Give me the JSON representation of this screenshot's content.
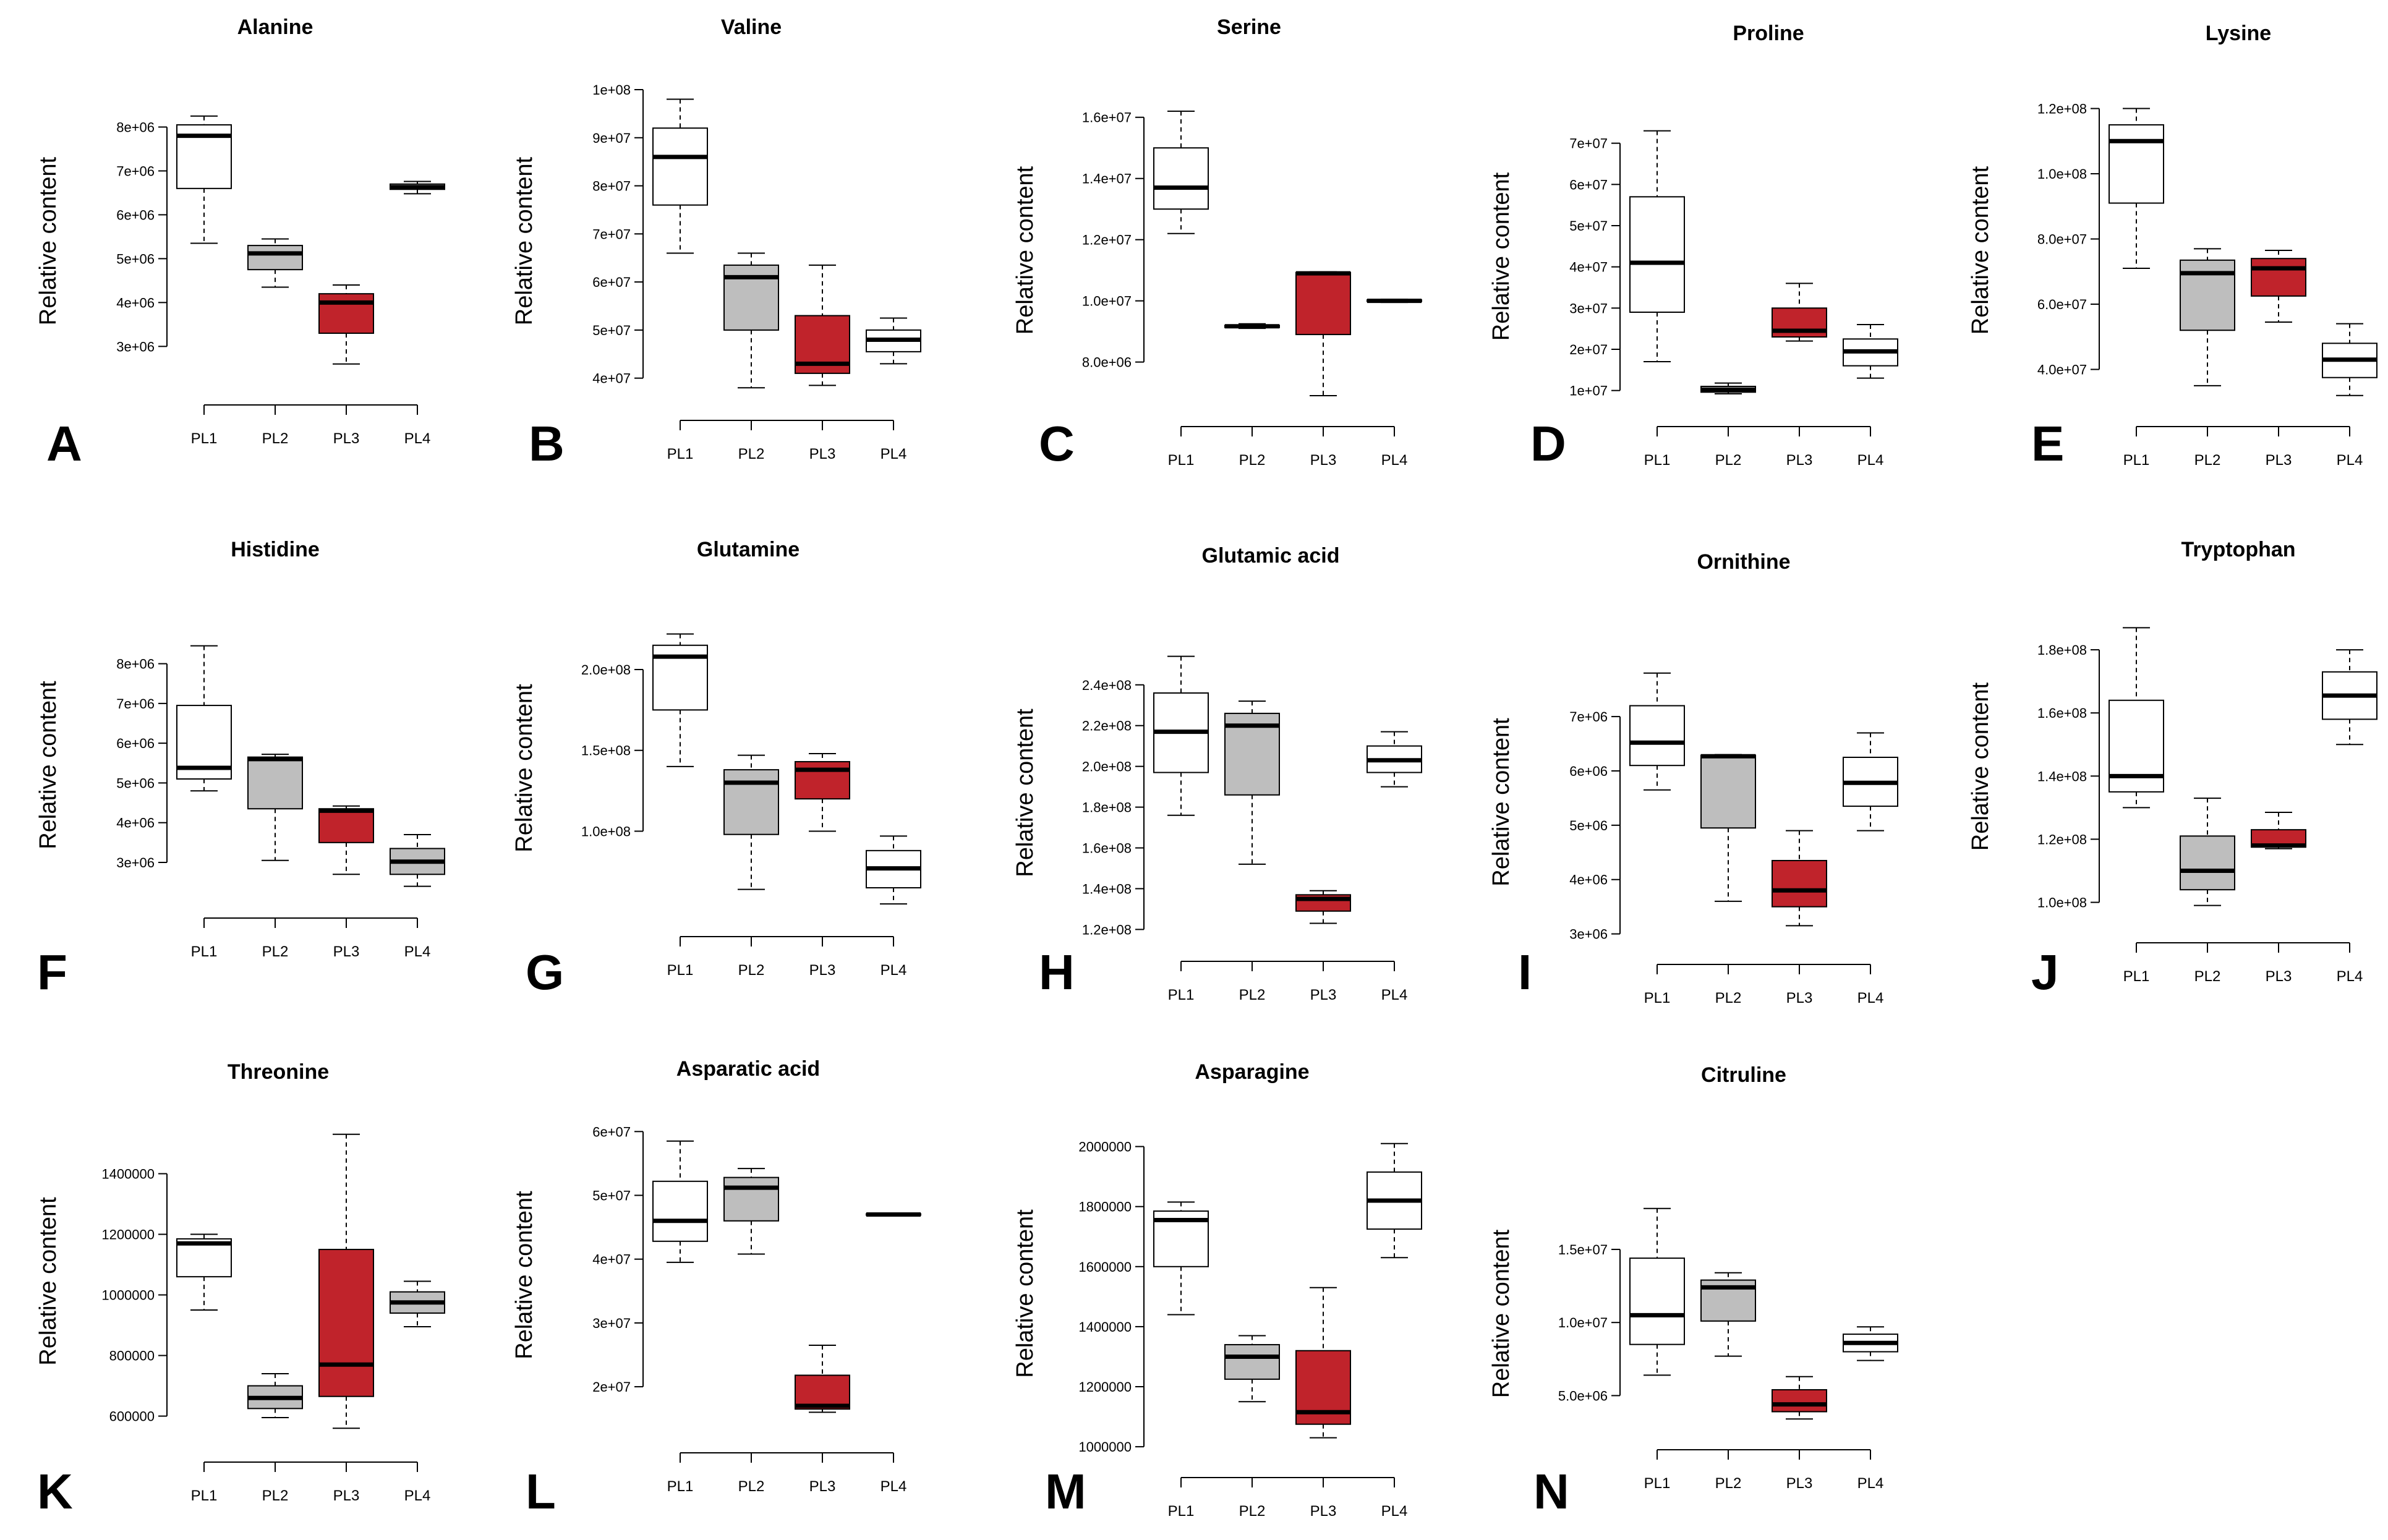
{
  "figure": {
    "ylabel": "Relative content",
    "colors": {
      "white": "#ffffff",
      "gray": "#bebebe",
      "red": "#c0232b",
      "line": "#000000"
    }
  },
  "chart_data": [
    {
      "panel": "A",
      "title": "Alanine",
      "type": "boxplot",
      "ylabel": "Relative content",
      "ylim": [
        2300000.0,
        8500000.0
      ],
      "ticks": [
        3000000.0,
        4000000.0,
        5000000.0,
        6000000.0,
        7000000.0,
        8000000.0
      ],
      "tick_labels": [
        "3e+06",
        "4e+06",
        "5e+06",
        "6e+06",
        "7e+06",
        "8e+06"
      ],
      "categories": [
        "PL1",
        "PL2",
        "PL3",
        "PL4"
      ],
      "fills": [
        "white",
        "gray",
        "red",
        "gray"
      ],
      "boxes": [
        {
          "min": 5350000.0,
          "q1": 6600000.0,
          "median": 7800000.0,
          "q3": 8050000.0,
          "max": 8250000.0
        },
        {
          "min": 4350000.0,
          "q1": 4750000.0,
          "median": 5120000.0,
          "q3": 5300000.0,
          "max": 5450000.0
        },
        {
          "min": 2600000.0,
          "q1": 3300000.0,
          "median": 4000000.0,
          "q3": 4200000.0,
          "max": 4400000.0
        },
        {
          "min": 6480000.0,
          "q1": 6580000.0,
          "median": 6630000.0,
          "q3": 6700000.0,
          "max": 6760000.0
        }
      ]
    },
    {
      "panel": "B",
      "title": "Valine",
      "type": "boxplot",
      "ylabel": "Relative content",
      "ylim": [
        37000000.0,
        100000000.0
      ],
      "ticks": [
        40000000.0,
        50000000.0,
        60000000.0,
        70000000.0,
        80000000.0,
        90000000.0,
        100000000.0
      ],
      "tick_labels": [
        "4e+07",
        "5e+07",
        "6e+07",
        "7e+07",
        "8e+07",
        "9e+07",
        "1e+08"
      ],
      "categories": [
        "PL1",
        "PL2",
        "PL3",
        "PL4"
      ],
      "fills": [
        "white",
        "gray",
        "red",
        "white"
      ],
      "boxes": [
        {
          "min": 66000000.0,
          "q1": 76000000.0,
          "median": 86000000.0,
          "q3": 92000000.0,
          "max": 98000000.0
        },
        {
          "min": 38000000.0,
          "q1": 50000000.0,
          "median": 61000000.0,
          "q3": 63500000.0,
          "max": 66000000.0
        },
        {
          "min": 38500000.0,
          "q1": 41000000.0,
          "median": 43000000.0,
          "q3": 53000000.0,
          "max": 63500000.0
        },
        {
          "min": 43000000.0,
          "q1": 45500000.0,
          "median": 48000000.0,
          "q3": 50000000.0,
          "max": 52500000.0
        }
      ]
    },
    {
      "panel": "C",
      "title": "Serine",
      "type": "boxplot",
      "ylabel": "Relative content",
      "ylim": [
        6800000.0,
        16500000.0
      ],
      "ticks": [
        8000000.0,
        10000000.0,
        12000000.0,
        14000000.0,
        16000000.0
      ],
      "tick_labels": [
        "8.0e+06",
        "1.0e+07",
        "1.2e+07",
        "1.4e+07",
        "1.6e+07"
      ],
      "categories": [
        "PL1",
        "PL2",
        "PL3",
        "PL4"
      ],
      "fills": [
        "white",
        "gray",
        "red",
        "gray"
      ],
      "boxes": [
        {
          "min": 12200000.0,
          "q1": 13000000.0,
          "median": 13700000.0,
          "q3": 15000000.0,
          "max": 16200000.0
        },
        {
          "min": 9100000.0,
          "q1": 9130000.0,
          "median": 9170000.0,
          "q3": 9200000.0,
          "max": 9250000.0
        },
        {
          "min": 6900000.0,
          "q1": 8900000.0,
          "median": 10900000.0,
          "q3": 10930000.0,
          "max": 10950000.0
        },
        {
          "min": 9950000.0,
          "q1": 9980000.0,
          "median": 10000000.0,
          "q3": 10030000.0,
          "max": 10050000.0
        }
      ]
    },
    {
      "panel": "D",
      "title": "Proline",
      "type": "boxplot",
      "ylabel": "Relative content",
      "ylim": [
        8000000.0,
        77000000.0
      ],
      "ticks": [
        10000000.0,
        20000000.0,
        30000000.0,
        40000000.0,
        50000000.0,
        60000000.0,
        70000000.0
      ],
      "tick_labels": [
        "1e+07",
        "2e+07",
        "3e+07",
        "4e+07",
        "5e+07",
        "6e+07",
        "7e+07"
      ],
      "categories": [
        "PL1",
        "PL2",
        "PL3",
        "PL4"
      ],
      "fills": [
        "white",
        "gray",
        "red",
        "white"
      ],
      "boxes": [
        {
          "min": 17000000.0,
          "q1": 29000000.0,
          "median": 41000000.0,
          "q3": 57000000.0,
          "max": 73000000.0
        },
        {
          "min": 9200000.0,
          "q1": 9600000.0,
          "median": 10200000.0,
          "q3": 11000000.0,
          "max": 11800000.0
        },
        {
          "min": 22000000.0,
          "q1": 23000000.0,
          "median": 24500000.0,
          "q3": 30000000.0,
          "max": 36000000.0
        },
        {
          "min": 13000000.0,
          "q1": 16000000.0,
          "median": 19500000.0,
          "q3": 22500000.0,
          "max": 26000000.0
        }
      ]
    },
    {
      "panel": "E",
      "title": "Lysine",
      "type": "boxplot",
      "ylabel": "Relative content",
      "ylim": [
        31000000.0,
        122000000.0
      ],
      "ticks": [
        40000000.0,
        60000000.0,
        80000000.0,
        100000000.0,
        120000000.0
      ],
      "tick_labels": [
        "4.0e+07",
        "6.0e+07",
        "8.0e+07",
        "1.0e+08",
        "1.2e+08"
      ],
      "categories": [
        "PL1",
        "PL2",
        "PL3",
        "PL4"
      ],
      "fills": [
        "white",
        "gray",
        "red",
        "white"
      ],
      "boxes": [
        {
          "min": 71000000.0,
          "q1": 91000000.0,
          "median": 110000000.0,
          "q3": 115000000.0,
          "max": 120000000.0
        },
        {
          "min": 35000000.0,
          "q1": 52000000.0,
          "median": 69500000.0,
          "q3": 73500000.0,
          "max": 77000000.0
        },
        {
          "min": 54500000.0,
          "q1": 62500000.0,
          "median": 71000000.0,
          "q3": 74000000.0,
          "max": 76500000.0
        },
        {
          "min": 32000000.0,
          "q1": 37500000.0,
          "median": 43000000.0,
          "q3": 48000000.0,
          "max": 54000000.0
        }
      ]
    },
    {
      "panel": "F",
      "title": "Histidine",
      "type": "boxplot",
      "ylabel": "Relative content",
      "ylim": [
        2300000.0,
        8600000.0
      ],
      "ticks": [
        3000000.0,
        4000000.0,
        5000000.0,
        6000000.0,
        7000000.0,
        8000000.0
      ],
      "tick_labels": [
        "3e+06",
        "4e+06",
        "5e+06",
        "6e+06",
        "7e+06",
        "8e+06"
      ],
      "categories": [
        "PL1",
        "PL2",
        "PL3",
        "PL4"
      ],
      "fills": [
        "white",
        "gray",
        "red",
        "gray"
      ],
      "boxes": [
        {
          "min": 4800000.0,
          "q1": 5100000.0,
          "median": 5380000.0,
          "q3": 6950000.0,
          "max": 8450000.0
        },
        {
          "min": 3050000.0,
          "q1": 4350000.0,
          "median": 5600000.0,
          "q3": 5650000.0,
          "max": 5720000.0
        },
        {
          "min": 2700000.0,
          "q1": 3500000.0,
          "median": 4300000.0,
          "q3": 4350000.0,
          "max": 4420000.0
        },
        {
          "min": 2400000.0,
          "q1": 2700000.0,
          "median": 3020000.0,
          "q3": 3350000.0,
          "max": 3700000.0
        }
      ]
    },
    {
      "panel": "G",
      "title": "Glutamine",
      "type": "boxplot",
      "ylabel": "Relative content",
      "ylim": [
        52000000.0,
        226000000.0
      ],
      "ticks": [
        100000000.0,
        150000000.0,
        200000000.0
      ],
      "tick_labels": [
        "1.0e+08",
        "1.5e+08",
        "2.0e+08"
      ],
      "categories": [
        "PL1",
        "PL2",
        "PL3",
        "PL4"
      ],
      "fills": [
        "white",
        "gray",
        "red",
        "white"
      ],
      "boxes": [
        {
          "min": 140000000.0,
          "q1": 175000000.0,
          "median": 208000000.0,
          "q3": 215000000.0,
          "max": 222000000.0
        },
        {
          "min": 64000000.0,
          "q1": 98000000.0,
          "median": 130000000.0,
          "q3": 138000000.0,
          "max": 147000000.0
        },
        {
          "min": 100000000.0,
          "q1": 120000000.0,
          "median": 138000000.0,
          "q3": 143000000.0,
          "max": 148000000.0
        },
        {
          "min": 55000000.0,
          "q1": 65000000.0,
          "median": 77000000.0,
          "q3": 88000000.0,
          "max": 97000000.0
        }
      ]
    },
    {
      "panel": "H",
      "title": "Glutamic acid",
      "type": "boxplot",
      "ylabel": "Relative content",
      "ylim": [
        118000000.0,
        256000000.0
      ],
      "ticks": [
        120000000.0,
        140000000.0,
        160000000.0,
        180000000.0,
        200000000.0,
        220000000.0,
        240000000.0
      ],
      "tick_labels": [
        "1.2e+08",
        "1.4e+08",
        "1.6e+08",
        "1.8e+08",
        "2.0e+08",
        "2.2e+08",
        "2.4e+08"
      ],
      "categories": [
        "PL1",
        "PL2",
        "PL3",
        "PL4"
      ],
      "fills": [
        "white",
        "gray",
        "red",
        "white"
      ],
      "boxes": [
        {
          "min": 176000000.0,
          "q1": 197000000.0,
          "median": 217000000.0,
          "q3": 236000000.0,
          "max": 254000000.0
        },
        {
          "min": 152000000.0,
          "q1": 186000000.0,
          "median": 220000000.0,
          "q3": 226000000.0,
          "max": 232000000.0
        },
        {
          "min": 123000000.0,
          "q1": 129000000.0,
          "median": 135000000.0,
          "q3": 137000000.0,
          "max": 139000000.0
        },
        {
          "min": 190000000.0,
          "q1": 197000000.0,
          "median": 203000000.0,
          "q3": 210000000.0,
          "max": 217000000.0
        }
      ]
    },
    {
      "panel": "I",
      "title": "Ornithine",
      "type": "boxplot",
      "ylabel": "Relative content",
      "ylim": [
        2950000.0,
        7900000.0
      ],
      "ticks": [
        3000000.0,
        4000000.0,
        5000000.0,
        6000000.0,
        7000000.0
      ],
      "tick_labels": [
        "3e+06",
        "4e+06",
        "5e+06",
        "6e+06",
        "7e+06"
      ],
      "categories": [
        "PL1",
        "PL2",
        "PL3",
        "PL4"
      ],
      "fills": [
        "white",
        "gray",
        "red",
        "white"
      ],
      "boxes": [
        {
          "min": 5650000.0,
          "q1": 6100000.0,
          "median": 6520000.0,
          "q3": 7200000.0,
          "max": 7800000.0
        },
        {
          "min": 3600000.0,
          "q1": 4950000.0,
          "median": 6270000.0,
          "q3": 6290000.0,
          "max": 6300000.0
        },
        {
          "min": 3150000.0,
          "q1": 3500000.0,
          "median": 3800000.0,
          "q3": 4350000.0,
          "max": 4900000.0
        },
        {
          "min": 4900000.0,
          "q1": 5350000.0,
          "median": 5780000.0,
          "q3": 6250000.0,
          "max": 6700000.0
        }
      ]
    },
    {
      "panel": "J",
      "title": "Tryptophan",
      "type": "boxplot",
      "ylabel": "Relative content",
      "ylim": [
        96000000.0,
        190000000.0
      ],
      "ticks": [
        100000000.0,
        120000000.0,
        140000000.0,
        160000000.0,
        180000000.0
      ],
      "tick_labels": [
        "1.0e+08",
        "1.2e+08",
        "1.4e+08",
        "1.6e+08",
        "1.8e+08"
      ],
      "categories": [
        "PL1",
        "PL2",
        "PL3",
        "PL4"
      ],
      "fills": [
        "white",
        "gray",
        "red",
        "white"
      ],
      "boxes": [
        {
          "min": 130000000.0,
          "q1": 135000000.0,
          "median": 140000000.0,
          "q3": 164000000.0,
          "max": 187000000.0
        },
        {
          "min": 99000000.0,
          "q1": 104000000.0,
          "median": 110000000.0,
          "q3": 121000000.0,
          "max": 133000000.0
        },
        {
          "min": 117000000.0,
          "q1": 117500000.0,
          "median": 118000000.0,
          "q3": 123000000.0,
          "max": 128500000.0
        },
        {
          "min": 150000000.0,
          "q1": 158000000.0,
          "median": 165500000.0,
          "q3": 173000000.0,
          "max": 180000000.0
        }
      ]
    },
    {
      "panel": "K",
      "title": "Threonine",
      "type": "boxplot",
      "ylabel": "Relative content",
      "ylim": [
        540000,
        1550000
      ],
      "ticks": [
        600000,
        800000,
        1000000,
        1200000,
        1400000
      ],
      "tick_labels": [
        "600000",
        "800000",
        "1000000",
        "1200000",
        "1400000"
      ],
      "categories": [
        "PL1",
        "PL2",
        "PL3",
        "PL4"
      ],
      "fills": [
        "white",
        "gray",
        "red",
        "gray"
      ],
      "boxes": [
        {
          "min": 950000,
          "q1": 1060000,
          "median": 1170000,
          "q3": 1185000,
          "max": 1200000
        },
        {
          "min": 595000,
          "q1": 625000,
          "median": 660000,
          "q3": 700000,
          "max": 740000
        },
        {
          "min": 560000,
          "q1": 665000,
          "median": 770000,
          "q3": 1150000,
          "max": 1530000
        },
        {
          "min": 895000,
          "q1": 940000,
          "median": 975000,
          "q3": 1010000,
          "max": 1045000
        }
      ]
    },
    {
      "panel": "L",
      "title": "Asparatic acid",
      "type": "boxplot",
      "ylabel": "Relative content",
      "ylim": [
        14000000.0,
        61000000.0
      ],
      "ticks": [
        20000000.0,
        30000000.0,
        40000000.0,
        50000000.0,
        60000000.0
      ],
      "tick_labels": [
        "2e+07",
        "3e+07",
        "4e+07",
        "5e+07",
        "6e+07"
      ],
      "categories": [
        "PL1",
        "PL2",
        "PL3",
        "PL4"
      ],
      "fills": [
        "white",
        "gray",
        "red",
        "gray"
      ],
      "boxes": [
        {
          "min": 39500000.0,
          "q1": 42800000.0,
          "median": 46000000.0,
          "q3": 52200000.0,
          "max": 58500000.0
        },
        {
          "min": 40800000.0,
          "q1": 46000000.0,
          "median": 51200000.0,
          "q3": 52800000.0,
          "max": 54200000.0
        },
        {
          "min": 16000000.0,
          "q1": 16500000.0,
          "median": 17000000.0,
          "q3": 21800000.0,
          "max": 26500000.0
        },
        {
          "min": 46800000.0,
          "q1": 46900000.0,
          "median": 47000000.0,
          "q3": 47100000.0,
          "max": 47200000.0
        }
      ]
    },
    {
      "panel": "M",
      "title": "Asparagine",
      "type": "boxplot",
      "ylabel": "Relative content",
      "ylim": [
        990000,
        2030000
      ],
      "ticks": [
        1000000,
        1200000,
        1400000,
        1600000,
        1800000,
        2000000
      ],
      "tick_labels": [
        "1000000",
        "1200000",
        "1400000",
        "1600000",
        "1800000",
        "2000000"
      ],
      "categories": [
        "PL1",
        "PL2",
        "PL3",
        "PL4"
      ],
      "fills": [
        "white",
        "gray",
        "red",
        "white"
      ],
      "boxes": [
        {
          "min": 1440000,
          "q1": 1600000,
          "median": 1755000,
          "q3": 1785000,
          "max": 1815000
        },
        {
          "min": 1150000,
          "q1": 1225000,
          "median": 1300000,
          "q3": 1340000,
          "max": 1370000
        },
        {
          "min": 1030000,
          "q1": 1075000,
          "median": 1115000,
          "q3": 1320000,
          "max": 1530000
        },
        {
          "min": 1630000,
          "q1": 1725000,
          "median": 1820000,
          "q3": 1915000,
          "max": 2010000
        }
      ]
    },
    {
      "panel": "N",
      "title": "Citruline",
      "type": "boxplot",
      "ylabel": "Relative content",
      "ylim": [
        3200000.0,
        18000000.0
      ],
      "ticks": [
        5000000.0,
        10000000.0,
        15000000.0
      ],
      "tick_labels": [
        "5.0e+06",
        "1.0e+07",
        "1.5e+07"
      ],
      "categories": [
        "PL1",
        "PL2",
        "PL3",
        "PL4"
      ],
      "fills": [
        "white",
        "gray",
        "red",
        "white"
      ],
      "boxes": [
        {
          "min": 6400000.0,
          "q1": 8500000.0,
          "median": 10500000.0,
          "q3": 14400000.0,
          "max": 17800000.0
        },
        {
          "min": 7700000.0,
          "q1": 10100000.0,
          "median": 12400000.0,
          "q3": 12900000.0,
          "max": 13400000.0
        },
        {
          "min": 3400000.0,
          "q1": 3900000.0,
          "median": 4400000.0,
          "q3": 5400000.0,
          "max": 6300000.0
        },
        {
          "min": 7400000.0,
          "q1": 8000000.0,
          "median": 8600000.0,
          "q3": 9200000.0,
          "max": 9700000.0
        }
      ]
    }
  ]
}
